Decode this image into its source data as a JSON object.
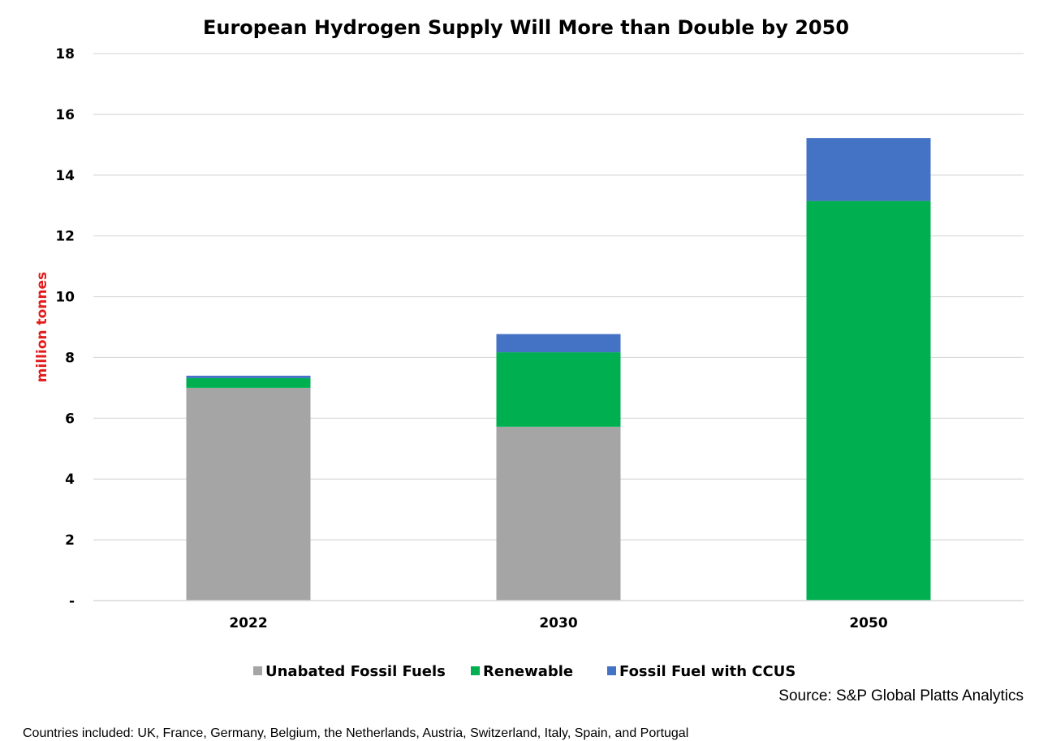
{
  "chart_data": {
    "type": "bar",
    "stacked": true,
    "title": "European Hydrogen Supply  Will More than Double by 2050",
    "ylabel": "million tonnes",
    "xlabel": "",
    "ylim": [
      0,
      18
    ],
    "yticks": [
      0,
      2,
      4,
      6,
      8,
      10,
      12,
      14,
      16,
      18
    ],
    "ytick_labels": [
      "-",
      "2",
      "4",
      "6",
      "8",
      "10",
      "12",
      "14",
      "16",
      "18"
    ],
    "grid": true,
    "legend_placement": "bottom",
    "categories": [
      "2022",
      "2030",
      "2050"
    ],
    "series": [
      {
        "name": "Unabated Fossil Fuels",
        "color": "#a5a5a5",
        "values": [
          7.0,
          5.72,
          0
        ]
      },
      {
        "name": "Renewable",
        "color": "#00b050",
        "values": [
          0.32,
          2.45,
          13.15
        ]
      },
      {
        "name": "Fossil Fuel with CCUS",
        "color": "#4472c4",
        "values": [
          0.08,
          0.6,
          2.07
        ]
      }
    ]
  },
  "source": "Source: S&P Global Platts Analytics",
  "footnote": "Countries included: UK, France, Germany, Belgium, the Netherlands, Austria, Switzerland, Italy, Spain, and Portugal"
}
